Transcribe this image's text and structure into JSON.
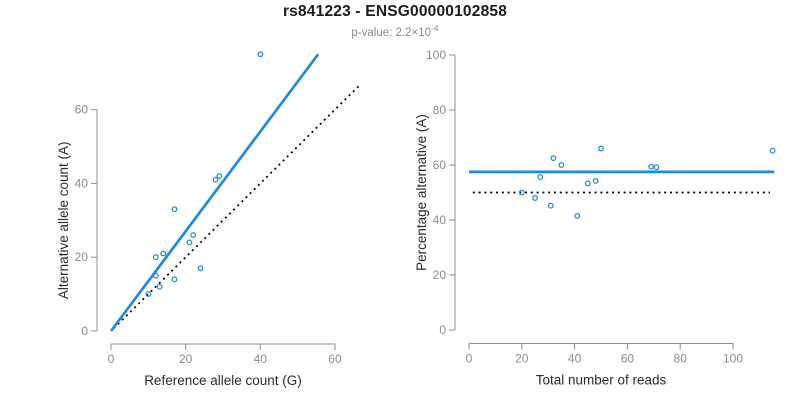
{
  "figure": {
    "title": "rs841223 - ENSG00000102858",
    "subtitle": {
      "prefix": "p-value: 2.2×10",
      "exponent": "-4"
    },
    "colors": {
      "accent_blue": "#1E88E5",
      "dotted_black": "#000000",
      "axis_gray": "#8c8c8c",
      "tick_label_gray": "#8c8c8c",
      "axis_title_dark": "#2b2b2b"
    }
  },
  "chart_data": [
    {
      "type": "scatter",
      "panel": "left",
      "xlabel": "Reference allele count (G)",
      "ylabel": "Alternative allele count (A)",
      "x_ticks": [
        0,
        20,
        40,
        60
      ],
      "y_ticks": [
        0,
        20,
        40,
        60
      ],
      "xlim": [
        0,
        66
      ],
      "ylim": [
        0,
        75
      ],
      "grid": false,
      "points": [
        [
          10,
          10
        ],
        [
          13,
          12
        ],
        [
          12,
          15
        ],
        [
          12,
          20
        ],
        [
          14,
          21
        ],
        [
          17,
          14
        ],
        [
          24,
          17
        ],
        [
          21,
          24
        ],
        [
          22,
          26
        ],
        [
          17,
          33
        ],
        [
          28,
          41
        ],
        [
          29,
          42
        ],
        [
          40,
          75
        ]
      ],
      "lines": [
        {
          "name": "regression-line",
          "style": "solid-blue",
          "slope": 1.351,
          "from": [
            0,
            0
          ],
          "to": [
            55.5,
            75
          ]
        },
        {
          "name": "identity-line",
          "style": "dotted-black",
          "slope": 1,
          "from": [
            0,
            0
          ],
          "to": [
            66.3,
            66.3
          ]
        }
      ]
    },
    {
      "type": "scatter",
      "panel": "right",
      "xlabel": "Total number of reads",
      "ylabel": "Percentage alternative (A)",
      "x_ticks": [
        0,
        20,
        40,
        60,
        80,
        100
      ],
      "y_ticks": [
        0,
        20,
        40,
        60,
        80,
        100
      ],
      "xlim": [
        0,
        115.6
      ],
      "ylim": [
        0,
        100
      ],
      "grid": false,
      "points": [
        [
          20,
          50
        ],
        [
          25,
          48
        ],
        [
          27,
          55.6
        ],
        [
          32,
          62.5
        ],
        [
          35,
          60
        ],
        [
          31,
          45.2
        ],
        [
          41,
          41.5
        ],
        [
          45,
          53.3
        ],
        [
          48,
          54.2
        ],
        [
          50,
          66
        ],
        [
          69,
          59.4
        ],
        [
          71,
          59.2
        ],
        [
          115,
          65.2
        ]
      ],
      "lines": [
        {
          "name": "mean-percentage-line",
          "style": "solid-blue",
          "from": [
            0,
            57.5
          ],
          "to": [
            115.6,
            57.5
          ]
        },
        {
          "name": "fifty-percent-reference-line",
          "style": "dotted-black",
          "from": [
            0,
            50
          ],
          "to": [
            114,
            50
          ]
        }
      ]
    }
  ]
}
